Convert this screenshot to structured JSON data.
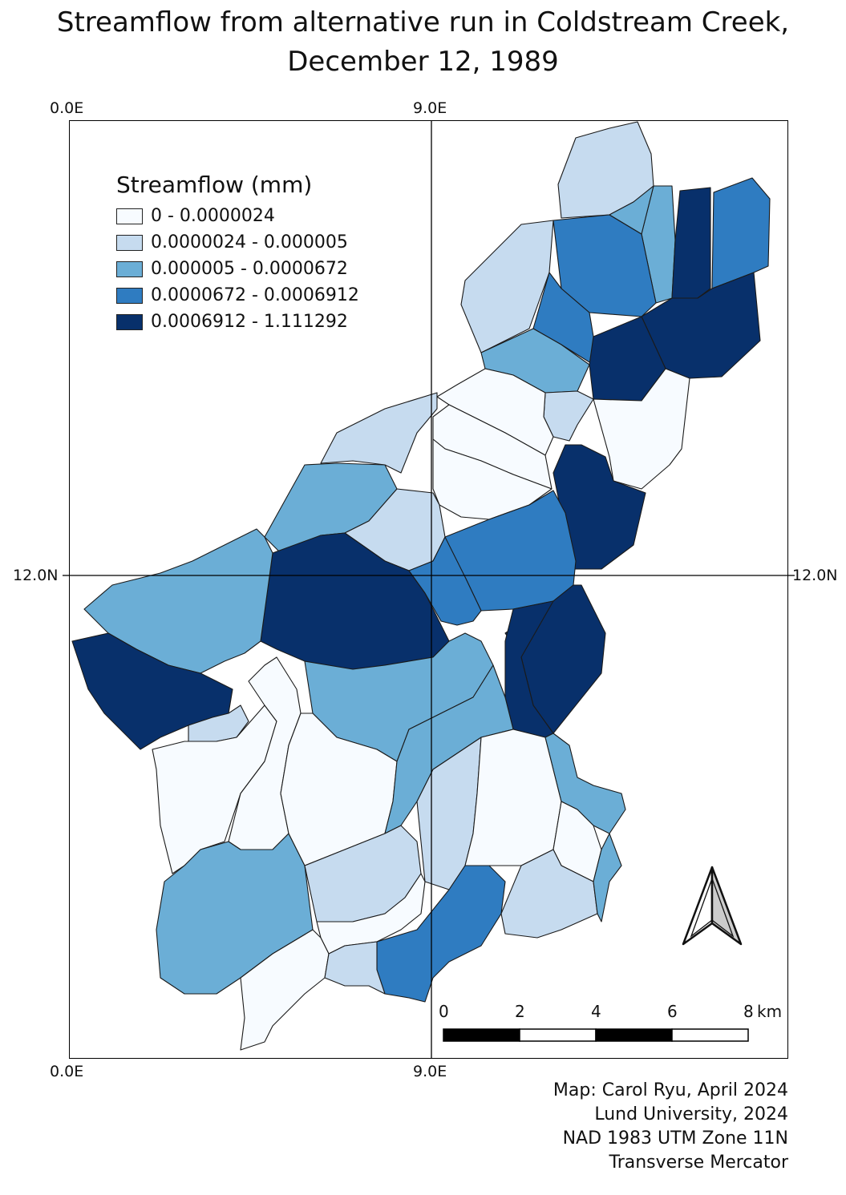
{
  "title": {
    "line1": "Streamflow from alternative run in Coldstream Creek,",
    "line2": "December 12, 1989"
  },
  "graticule": {
    "top_left": "0.0E",
    "top_mid": "9.0E",
    "bottom_left": "0.0E",
    "bottom_mid": "9.0E",
    "left_mid": "12.0N",
    "right_mid": "12.0N"
  },
  "legend": {
    "title": "Streamflow (mm)",
    "classes": [
      {
        "label": "0 - 0.0000024",
        "color": "#f7fbff"
      },
      {
        "label": "0.0000024 - 0.000005",
        "color": "#c6dbef"
      },
      {
        "label": "0.000005 - 0.0000672",
        "color": "#6baed6"
      },
      {
        "label": "0.0000672 - 0.0006912",
        "color": "#2f7cc1"
      },
      {
        "label": "0.0006912 - 1.111292",
        "color": "#08306b"
      }
    ]
  },
  "scale_bar": {
    "labels": [
      "0",
      "2",
      "4",
      "6",
      "8"
    ],
    "unit": "km"
  },
  "north_arrow": {
    "icon": "north-arrow-icon"
  },
  "credits": {
    "line1": "Map: Carol Ryu,  April 2024",
    "line2": "Lund University,  2024",
    "line3": "NAD 1983 UTM Zone 11N",
    "line4": "Transverse Mercator"
  },
  "subbasin_classes": [
    4,
    2,
    3,
    5,
    4,
    3,
    2,
    4,
    3,
    5,
    5,
    1,
    2,
    1,
    1,
    1,
    5,
    4,
    5,
    2,
    3,
    2,
    5,
    4,
    3,
    5,
    3,
    5,
    2,
    1,
    1,
    3,
    1,
    3,
    2,
    2,
    1,
    3,
    1,
    1,
    1,
    4,
    2,
    2,
    3
  ]
}
